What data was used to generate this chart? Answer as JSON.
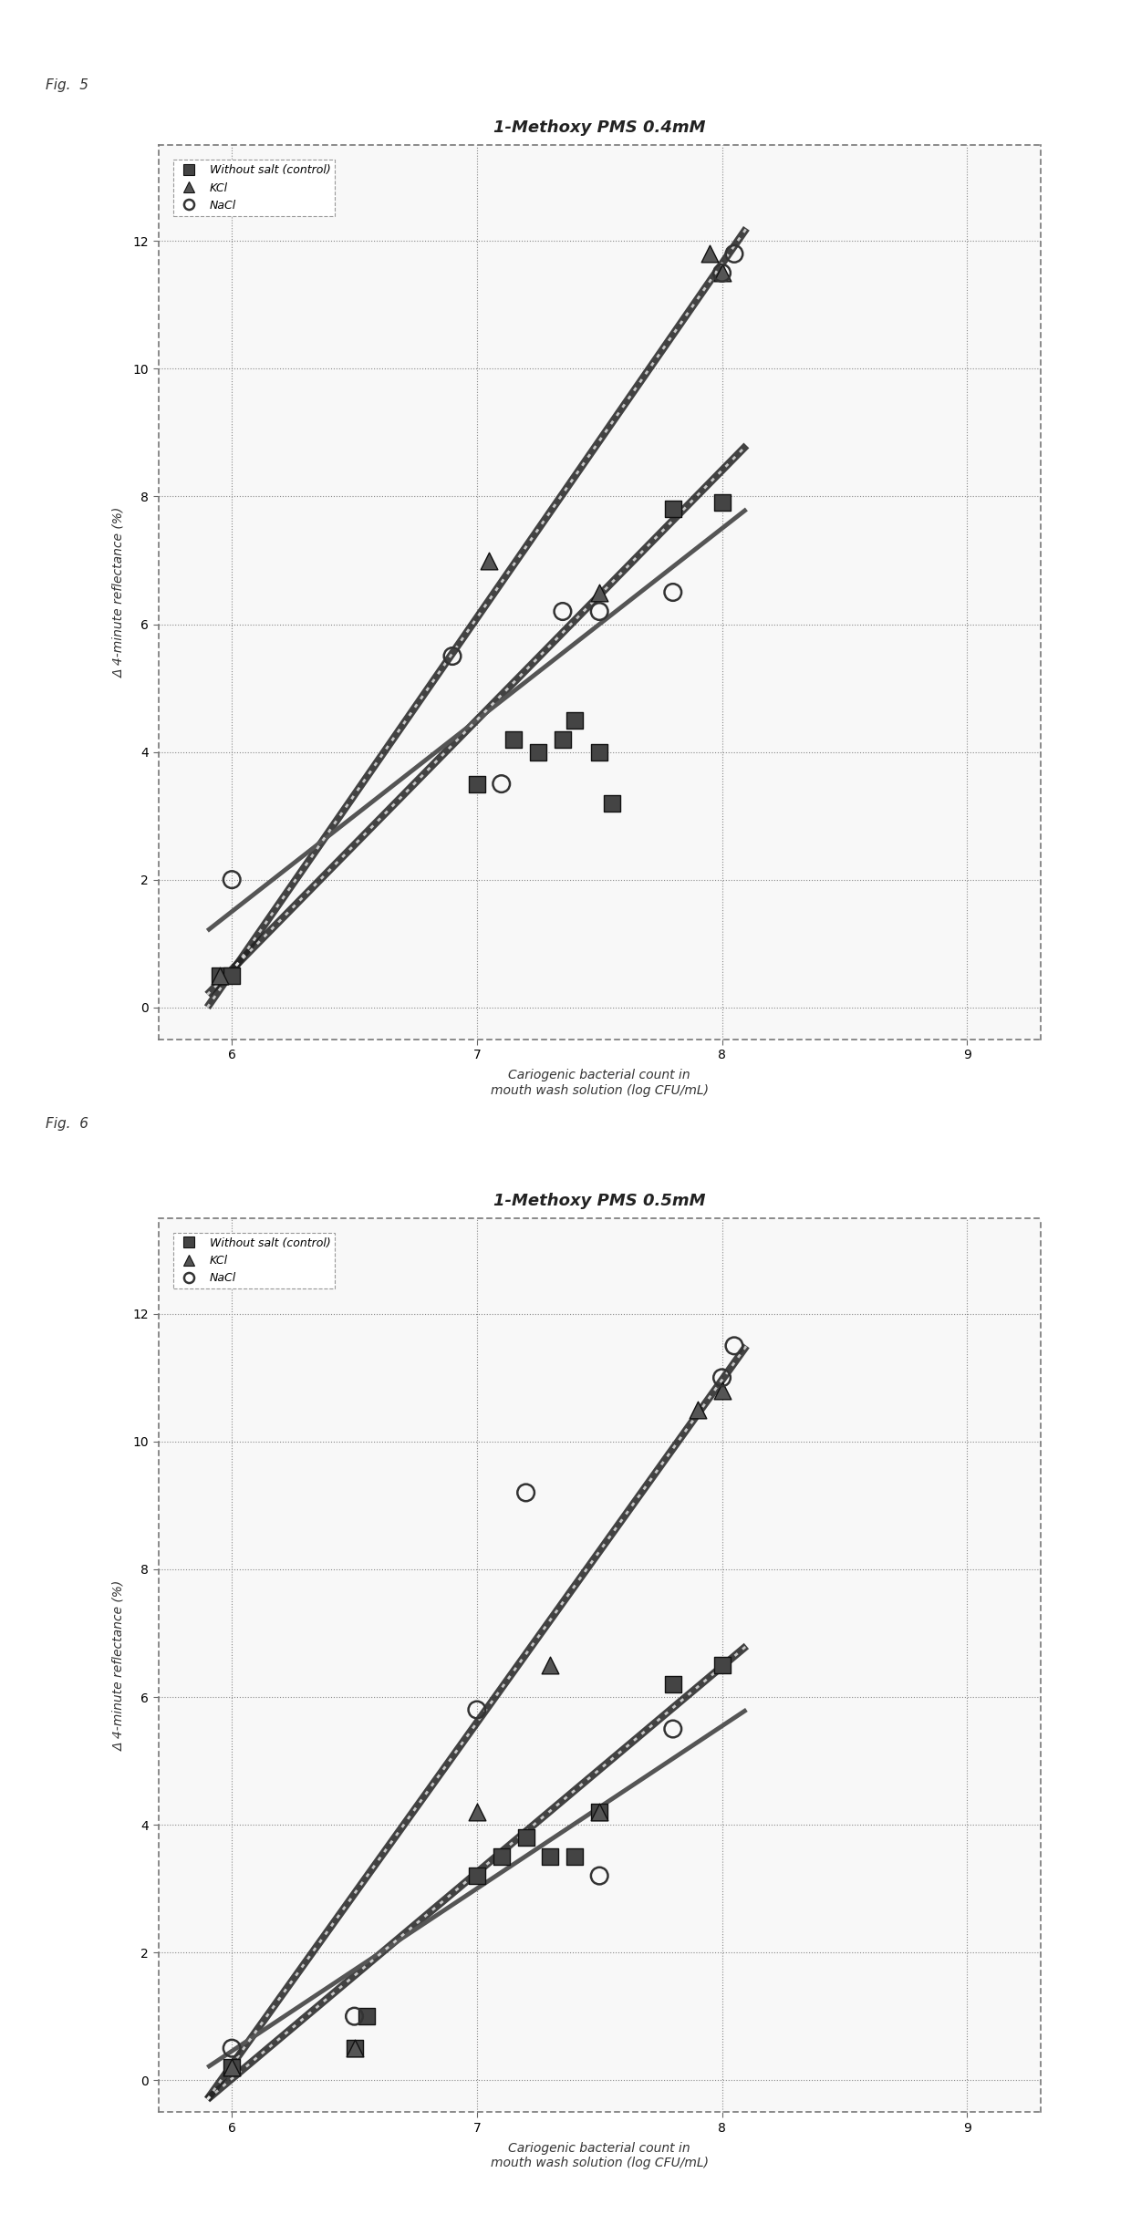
{
  "fig5": {
    "title": "1-Methoxy PMS 0.4mM",
    "control": {
      "x": [
        5.95,
        6.0,
        7.0,
        7.15,
        7.25,
        7.35,
        7.4,
        7.5,
        7.55,
        7.8,
        8.0
      ],
      "y": [
        0.5,
        0.5,
        3.5,
        4.2,
        4.0,
        4.2,
        4.5,
        4.0,
        3.2,
        7.8,
        7.9
      ]
    },
    "kcl": {
      "x": [
        5.95,
        7.05,
        7.5,
        7.95,
        8.0
      ],
      "y": [
        0.5,
        7.0,
        6.5,
        11.8,
        11.5
      ]
    },
    "nacl": {
      "x": [
        6.0,
        6.9,
        7.1,
        7.35,
        7.5,
        7.8,
        8.0,
        8.05
      ],
      "y": [
        2.0,
        5.5,
        3.5,
        6.2,
        6.2,
        6.5,
        11.5,
        11.8
      ]
    },
    "line_control": {
      "x0": 5.9,
      "y0": 0.2,
      "x1": 8.1,
      "y1": 8.8
    },
    "line_kcl": {
      "x0": 5.9,
      "y0": 0.0,
      "x1": 8.1,
      "y1": 12.2
    },
    "line_nacl": {
      "x0": 5.9,
      "y0": 1.2,
      "x1": 8.1,
      "y1": 7.8
    }
  },
  "fig6": {
    "title": "1-Methoxy PMS 0.5mM",
    "control": {
      "x": [
        6.0,
        6.5,
        6.55,
        7.0,
        7.1,
        7.2,
        7.3,
        7.4,
        7.5,
        7.8,
        8.0
      ],
      "y": [
        0.2,
        0.5,
        1.0,
        3.2,
        3.5,
        3.8,
        3.5,
        3.5,
        4.2,
        6.2,
        6.5
      ]
    },
    "kcl": {
      "x": [
        6.0,
        6.5,
        7.0,
        7.3,
        7.5,
        7.9,
        8.0
      ],
      "y": [
        0.2,
        0.5,
        4.2,
        6.5,
        4.2,
        10.5,
        10.8
      ]
    },
    "nacl": {
      "x": [
        6.0,
        6.5,
        7.0,
        7.2,
        7.5,
        7.8,
        8.0,
        8.05
      ],
      "y": [
        0.5,
        1.0,
        5.8,
        9.2,
        3.2,
        5.5,
        11.0,
        11.5
      ]
    },
    "line_control": {
      "x0": 5.9,
      "y0": -0.3,
      "x1": 8.1,
      "y1": 6.8
    },
    "line_kcl": {
      "x0": 5.9,
      "y0": -0.3,
      "x1": 8.1,
      "y1": 11.5
    },
    "line_nacl": {
      "x0": 5.9,
      "y0": 0.2,
      "x1": 8.1,
      "y1": 5.8
    }
  },
  "xlabel": "Cariogenic bacterial count in\nmouth wash solution (log CFU/mL)",
  "ylabel": "Δ 4-minute reflectance (%)",
  "xlim": [
    5.7,
    9.3
  ],
  "ylim": [
    -0.5,
    13.5
  ],
  "xticks": [
    6,
    7,
    8,
    9
  ],
  "yticks": [
    0,
    2,
    4,
    6,
    8,
    10,
    12
  ],
  "legend_labels": [
    "Without salt (control)",
    "KCl",
    "NaCl"
  ],
  "fig_labels": [
    "Fig.  5",
    "Fig.  6"
  ],
  "background_color": "#ffffff",
  "fontsize_title": 13,
  "fontsize_label": 10,
  "fontsize_tick": 10,
  "fontsize_legend": 9,
  "fontsize_figlabel": 11
}
